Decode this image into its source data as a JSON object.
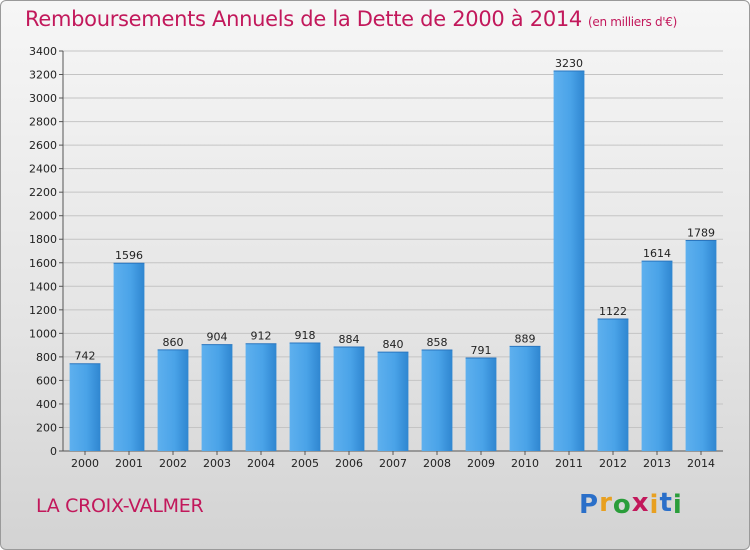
{
  "chart_data": {
    "type": "bar",
    "title": "Remboursements Annuels de la Dette de 2000 à 2014",
    "unit_label": "(en milliers d'€)",
    "categories": [
      "2000",
      "2001",
      "2002",
      "2003",
      "2004",
      "2005",
      "2006",
      "2007",
      "2008",
      "2009",
      "2010",
      "2011",
      "2012",
      "2013",
      "2014"
    ],
    "values": [
      742,
      1596,
      860,
      904,
      912,
      918,
      884,
      840,
      858,
      791,
      889,
      3230,
      1122,
      1614,
      1789
    ],
    "ylim": [
      0,
      3400
    ],
    "yticks": [
      0,
      200,
      400,
      600,
      800,
      1000,
      1200,
      1400,
      1600,
      1800,
      2000,
      2200,
      2400,
      2600,
      2800,
      3000,
      3200,
      3400
    ],
    "xlabel": "",
    "ylabel": "",
    "grid": true,
    "bar_color": "#3a8fd8"
  },
  "commune": "LA CROIX-VALMER",
  "logo": {
    "letters": [
      "P",
      "r",
      "o",
      "x",
      "i",
      "t",
      "i"
    ],
    "colors": [
      "#2a6fc9",
      "#e8a020",
      "#2a9d3a",
      "#c2185b",
      "#e8a020",
      "#2a6fc9",
      "#2a9d3a"
    ]
  }
}
